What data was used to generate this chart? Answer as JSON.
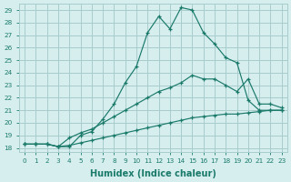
{
  "xlabel": "Humidex (Indice chaleur)",
  "x": [
    0,
    1,
    2,
    3,
    4,
    5,
    6,
    7,
    8,
    9,
    10,
    11,
    12,
    13,
    14,
    15,
    16,
    17,
    18,
    19,
    20,
    21,
    22,
    23
  ],
  "line1": [
    18.3,
    18.3,
    18.3,
    18.1,
    18.1,
    19.0,
    19.3,
    20.3,
    21.5,
    23.2,
    24.5,
    27.2,
    28.5,
    27.5,
    29.2,
    29.0,
    27.2,
    26.3,
    25.2,
    24.8,
    21.8,
    21.0,
    21.0,
    21.0
  ],
  "line2": [
    18.3,
    18.3,
    18.3,
    18.1,
    18.8,
    19.2,
    19.5,
    20.0,
    20.5,
    21.0,
    21.5,
    22.0,
    22.5,
    22.8,
    23.2,
    23.8,
    23.5,
    23.5,
    23.0,
    22.5,
    23.5,
    21.5,
    21.5,
    21.2
  ],
  "line3": [
    18.3,
    18.3,
    18.3,
    18.1,
    18.2,
    18.4,
    18.6,
    18.8,
    19.0,
    19.2,
    19.4,
    19.6,
    19.8,
    20.0,
    20.2,
    20.4,
    20.5,
    20.6,
    20.7,
    20.7,
    20.8,
    20.9,
    21.0,
    21.0
  ],
  "line_color": "#1a7a6a",
  "bg_color": "#d6eeee",
  "grid_color": "#a8cccc",
  "ylim": [
    18,
    29
  ],
  "xlim": [
    0,
    23
  ],
  "yticks": [
    18,
    19,
    20,
    21,
    22,
    23,
    24,
    25,
    26,
    27,
    28,
    29
  ],
  "xticks": [
    0,
    1,
    2,
    3,
    4,
    5,
    6,
    7,
    8,
    9,
    10,
    11,
    12,
    13,
    14,
    15,
    16,
    17,
    18,
    19,
    20,
    21,
    22,
    23
  ]
}
